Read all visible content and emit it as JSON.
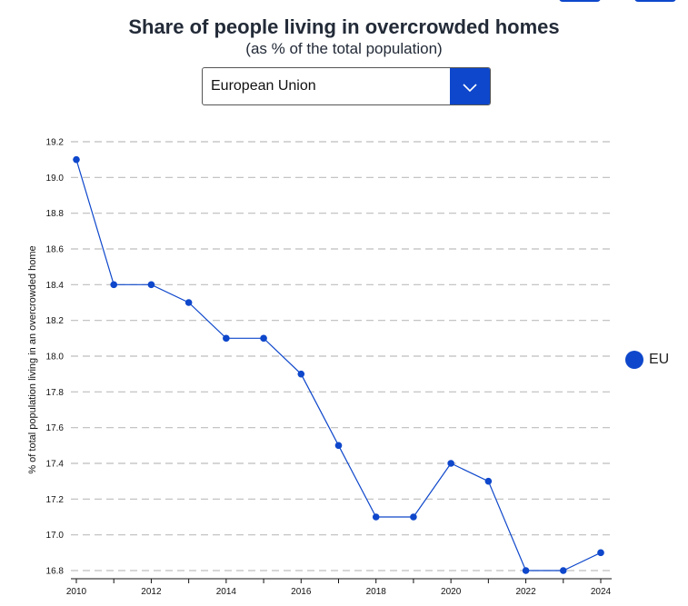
{
  "header": {
    "title": "Share of people living in overcrowded homes",
    "subtitle": "(as % of the total population)"
  },
  "selector": {
    "value": "European Union",
    "icon": "chevron-down-icon"
  },
  "colors": {
    "accent": "#0e47cb",
    "grid": "#bdbdbd",
    "axis": "#111111"
  },
  "chart_data": {
    "type": "line",
    "title": "Share of people living in overcrowded homes",
    "subtitle": "(as % of the total population)",
    "xlabel": "",
    "ylabel": "% of total population living in an overcrowded home",
    "x": [
      2010,
      2011,
      2012,
      2013,
      2014,
      2015,
      2016,
      2017,
      2018,
      2019,
      2020,
      2021,
      2022,
      2023,
      2024
    ],
    "series": [
      {
        "name": "EU",
        "color": "#0e47cb",
        "values": [
          19.1,
          18.4,
          18.4,
          18.3,
          18.1,
          18.1,
          17.9,
          17.5,
          17.1,
          17.1,
          17.4,
          17.3,
          16.8,
          16.8,
          16.9
        ]
      }
    ],
    "ylim": [
      16.8,
      19.2
    ],
    "yticks": [
      "16.8",
      "17.0",
      "17.2",
      "17.4",
      "17.6",
      "17.8",
      "18.0",
      "18.2",
      "18.4",
      "18.6",
      "18.8",
      "19.0",
      "19.2"
    ],
    "xticks": [
      "2010",
      "2012",
      "2014",
      "2016",
      "2018",
      "2020",
      "2022",
      "2024"
    ],
    "grid": "horizontal-dashed",
    "legend": "right"
  }
}
